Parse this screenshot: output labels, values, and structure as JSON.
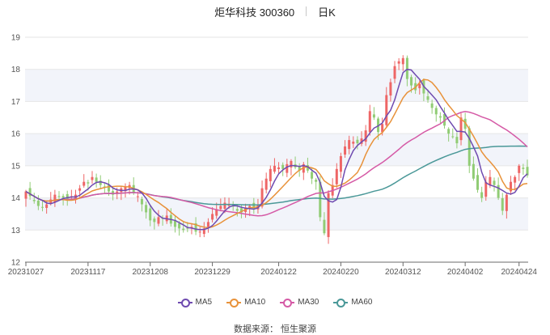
{
  "header": {
    "title": "炬华科技 300360",
    "period": "日K"
  },
  "source": "数据来源：  恒生聚源",
  "colors": {
    "up": "#ee6666",
    "down": "#91cc75",
    "ma5": "#6f4bb0",
    "ma10": "#e8923a",
    "ma30": "#d55aa6",
    "ma60": "#4a9898",
    "band": "#f2f4fa",
    "grid": "#e6e6e6"
  },
  "chart_data": {
    "type": "candlestick",
    "ylim": [
      12,
      19
    ],
    "yticks": [
      12,
      13,
      14,
      15,
      16,
      17,
      18,
      19
    ],
    "xticks": [
      {
        "date": "20231027",
        "index": 0
      },
      {
        "date": "20231117",
        "index": 15
      },
      {
        "date": "20231208",
        "index": 30
      },
      {
        "date": "20231229",
        "index": 45
      },
      {
        "date": "20240122",
        "index": 61
      },
      {
        "date": "20240220",
        "index": 76
      },
      {
        "date": "20240312",
        "index": 91
      },
      {
        "date": "20240402",
        "index": 106
      },
      {
        "date": "20240424",
        "index": 119
      }
    ],
    "legend": [
      "MA5",
      "MA10",
      "MA30",
      "MA60"
    ],
    "closes": [
      14.2,
      14.05,
      13.9,
      13.75,
      13.7,
      13.8,
      13.95,
      14.1,
      14.05,
      14.0,
      13.95,
      14.05,
      14.1,
      14.3,
      14.5,
      14.45,
      14.65,
      14.5,
      14.4,
      14.35,
      14.2,
      14.1,
      14.2,
      14.3,
      14.35,
      14.4,
      14.15,
      14.05,
      13.8,
      13.55,
      13.3,
      13.25,
      13.4,
      13.35,
      13.45,
      13.2,
      13.1,
      13.05,
      13.0,
      13.05,
      13.1,
      12.95,
      12.95,
      13.05,
      13.25,
      13.5,
      13.65,
      13.75,
      13.85,
      13.8,
      13.75,
      13.6,
      13.55,
      13.7,
      13.75,
      13.65,
      13.8,
      14.3,
      14.6,
      14.9,
      15.0,
      14.95,
      14.9,
      15.05,
      15.15,
      14.95,
      14.85,
      15.05,
      14.85,
      14.6,
      14.5,
      13.4,
      12.9,
      14.15,
      14.4,
      14.9,
      15.3,
      15.6,
      15.8,
      15.75,
      15.7,
      15.85,
      16.1,
      16.7,
      16.5,
      16.05,
      16.3,
      17.2,
      17.6,
      18.1,
      18.25,
      18.35,
      17.7,
      17.5,
      17.35,
      17.55,
      17.25,
      17.05,
      16.8,
      16.6,
      16.5,
      16.25,
      16.0,
      15.9,
      15.7,
      16.5,
      16.15,
      15.0,
      14.6,
      14.25,
      14.0,
      14.5,
      14.65,
      14.4,
      14.0,
      13.6,
      14.1,
      14.5,
      14.65,
      15.0,
      14.9,
      14.7
    ]
  }
}
